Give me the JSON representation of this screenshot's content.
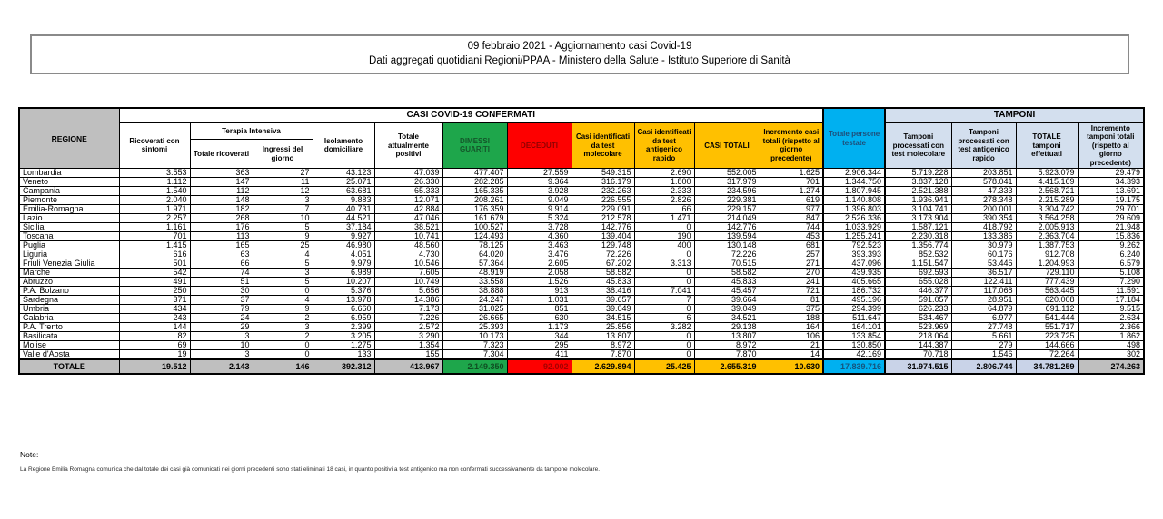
{
  "title": {
    "line1": "09 febbraio 2021 - Aggiornamento casi Covid-19",
    "line2": "Dati aggregati quotidiani Regioni/PPAA - Ministero della Salute - Istituto Superiore di Sanità"
  },
  "table": {
    "header": {
      "regione": "REGIONE",
      "casi_confermati": "CASI COVID-19 CONFERMATI",
      "ricoverati": "Ricoverati con sintomi",
      "terapia_intensiva": "Terapia Intensiva",
      "totale_ricoverati": "Totale ricoverati",
      "ingressi_giorno": "Ingressi del giorno",
      "isolamento": "Isolamento domiciliare",
      "attualmente_positivi": "Totale attualmente positivi",
      "dimessi_guariti": "DIMESSI GUARITI",
      "deceduti": "DECEDUTI",
      "casi_molecolare": "Casi identificati da test molecolare",
      "casi_antigenico": "Casi identificati da test antigenico rapido",
      "casi_totali": "CASI TOTALI",
      "incremento_casi": "Incremento casi totali (rispetto al giorno precedente)",
      "persone_testate": "Totale persone testate",
      "tamponi": "TAMPONI",
      "tamponi_molecolare": "Tamponi processati con test molecolare",
      "tamponi_antigenico": "Tamponi processati con test antigenico rapido",
      "totale_tamponi": "TOTALE tamponi effettuati",
      "incremento_tamponi": "Incremento tamponi totali (rispetto al giorno precedente)"
    },
    "rows": [
      {
        "regione": "Lombardia",
        "values": [
          "3.553",
          "363",
          "27",
          "43.123",
          "47.039",
          "477.407",
          "27.559",
          "549.315",
          "2.690",
          "552.005",
          "1.625",
          "2.906.344",
          "5.719.228",
          "203.851",
          "5.923.079",
          "29.479"
        ]
      },
      {
        "regione": "Veneto",
        "values": [
          "1.112",
          "147",
          "11",
          "25.071",
          "26.330",
          "282.285",
          "9.364",
          "316.179",
          "1.800",
          "317.979",
          "701",
          "1.344.750",
          "3.837.128",
          "578.041",
          "4.415.169",
          "34.393"
        ]
      },
      {
        "regione": "Campania",
        "values": [
          "1.540",
          "112",
          "12",
          "63.681",
          "65.333",
          "165.335",
          "3.928",
          "232.263",
          "2.333",
          "234.596",
          "1.274",
          "1.807.945",
          "2.521.388",
          "47.333",
          "2.568.721",
          "13.691"
        ]
      },
      {
        "regione": "Piemonte",
        "values": [
          "2.040",
          "148",
          "3",
          "9.883",
          "12.071",
          "208.261",
          "9.049",
          "226.555",
          "2.826",
          "229.381",
          "619",
          "1.140.808",
          "1.936.941",
          "278.348",
          "2.215.289",
          "19.175"
        ]
      },
      {
        "regione": "Emilia-Romagna",
        "values": [
          "1.971",
          "182",
          "7",
          "40.731",
          "42.884",
          "176.359",
          "9.914",
          "229.091",
          "66",
          "229.157",
          "977",
          "1.396.803",
          "3.104.741",
          "200.001",
          "3.304.742",
          "29.701"
        ]
      },
      {
        "regione": "Lazio",
        "values": [
          "2.257",
          "268",
          "10",
          "44.521",
          "47.046",
          "161.679",
          "5.324",
          "212.578",
          "1.471",
          "214.049",
          "847",
          "2.526.336",
          "3.173.904",
          "390.354",
          "3.564.258",
          "29.609"
        ]
      },
      {
        "regione": "Sicilia",
        "values": [
          "1.161",
          "176",
          "5",
          "37.184",
          "38.521",
          "100.527",
          "3.728",
          "142.776",
          "0",
          "142.776",
          "744",
          "1.033.929",
          "1.587.121",
          "418.792",
          "2.005.913",
          "21.948"
        ]
      },
      {
        "regione": "Toscana",
        "values": [
          "701",
          "113",
          "9",
          "9.927",
          "10.741",
          "124.493",
          "4.360",
          "139.404",
          "190",
          "139.594",
          "453",
          "1.255.241",
          "2.230.318",
          "133.386",
          "2.363.704",
          "15.836"
        ]
      },
      {
        "regione": "Puglia",
        "values": [
          "1.415",
          "165",
          "25",
          "46.980",
          "48.560",
          "78.125",
          "3.463",
          "129.748",
          "400",
          "130.148",
          "681",
          "792.523",
          "1.356.774",
          "30.979",
          "1.387.753",
          "9.262"
        ]
      },
      {
        "regione": "Liguria",
        "values": [
          "616",
          "63",
          "4",
          "4.051",
          "4.730",
          "64.020",
          "3.476",
          "72.226",
          "0",
          "72.226",
          "257",
          "393.393",
          "852.532",
          "60.176",
          "912.708",
          "6.240"
        ]
      },
      {
        "regione": "Friuli Venezia Giulia",
        "values": [
          "501",
          "66",
          "5",
          "9.979",
          "10.546",
          "57.364",
          "2.605",
          "67.202",
          "3.313",
          "70.515",
          "271",
          "437.096",
          "1.151.547",
          "53.446",
          "1.204.993",
          "6.579"
        ]
      },
      {
        "regione": "Marche",
        "values": [
          "542",
          "74",
          "3",
          "6.989",
          "7.605",
          "48.919",
          "2.058",
          "58.582",
          "0",
          "58.582",
          "270",
          "439.935",
          "692.593",
          "36.517",
          "729.110",
          "5.108"
        ]
      },
      {
        "regione": "Abruzzo",
        "values": [
          "491",
          "51",
          "5",
          "10.207",
          "10.749",
          "33.558",
          "1.526",
          "45.833",
          "0",
          "45.833",
          "241",
          "405.665",
          "655.028",
          "122.411",
          "777.439",
          "7.290"
        ]
      },
      {
        "regione": "P.A. Bolzano",
        "values": [
          "250",
          "30",
          "0",
          "5.376",
          "5.656",
          "38.888",
          "913",
          "38.416",
          "7.041",
          "45.457",
          "721",
          "186.732",
          "446.377",
          "117.068",
          "563.445",
          "11.591"
        ]
      },
      {
        "regione": "Sardegna",
        "values": [
          "371",
          "37",
          "4",
          "13.978",
          "14.386",
          "24.247",
          "1.031",
          "39.657",
          "7",
          "39.664",
          "81",
          "495.196",
          "591.057",
          "28.951",
          "620.008",
          "17.184"
        ]
      },
      {
        "regione": "Umbria",
        "values": [
          "434",
          "79",
          "9",
          "6.660",
          "7.173",
          "31.025",
          "851",
          "39.049",
          "0",
          "39.049",
          "375",
          "294.399",
          "626.233",
          "64.879",
          "691.112",
          "9.515"
        ]
      },
      {
        "regione": "Calabria",
        "values": [
          "243",
          "24",
          "2",
          "6.959",
          "7.226",
          "26.665",
          "630",
          "34.515",
          "6",
          "34.521",
          "188",
          "511.647",
          "534.467",
          "6.977",
          "541.444",
          "2.634"
        ]
      },
      {
        "regione": "P.A. Trento",
        "values": [
          "144",
          "29",
          "3",
          "2.399",
          "2.572",
          "25.393",
          "1.173",
          "25.856",
          "3.282",
          "29.138",
          "164",
          "164.101",
          "523.969",
          "27.748",
          "551.717",
          "2.366"
        ]
      },
      {
        "regione": "Basilicata",
        "values": [
          "82",
          "3",
          "2",
          "3.205",
          "3.290",
          "10.173",
          "344",
          "13.807",
          "0",
          "13.807",
          "106",
          "133.854",
          "218.064",
          "5.661",
          "223.725",
          "1.862"
        ]
      },
      {
        "regione": "Molise",
        "values": [
          "69",
          "10",
          "0",
          "1.275",
          "1.354",
          "7.323",
          "295",
          "8.972",
          "0",
          "8.972",
          "21",
          "130.850",
          "144.387",
          "279",
          "144.666",
          "498"
        ]
      },
      {
        "regione": "Valle d'Aosta",
        "values": [
          "19",
          "3",
          "0",
          "133",
          "155",
          "7.304",
          "411",
          "7.870",
          "0",
          "7.870",
          "14",
          "42.169",
          "70.718",
          "1.546",
          "72.264",
          "302"
        ]
      }
    ],
    "totale": {
      "label": "TOTALE",
      "values": [
        "19.512",
        "2.143",
        "146",
        "392.312",
        "413.967",
        "2.149.350",
        "92.002",
        "2.629.894",
        "25.425",
        "2.655.319",
        "10.630",
        "17.839.716",
        "31.974.515",
        "2.806.744",
        "34.781.259",
        "274.263"
      ]
    }
  },
  "notes": {
    "label": "Note:",
    "text": "La Regione Emilia Romagna comunica che dal totale dei casi già comunicati nei giorni precedenti sono stati eliminati 18 casi, in quanto positivi a test antigenico ma non confermati successivamente da tampone molecolare."
  },
  "colors": {
    "header_gray": "#BFBFBF",
    "green": "#1EA64B",
    "red": "#FE0000",
    "yellow": "#FFC000",
    "cyan": "#00B0F0",
    "light_blue": "#D3DFEE",
    "periwinkle": "#C9D3E8"
  }
}
